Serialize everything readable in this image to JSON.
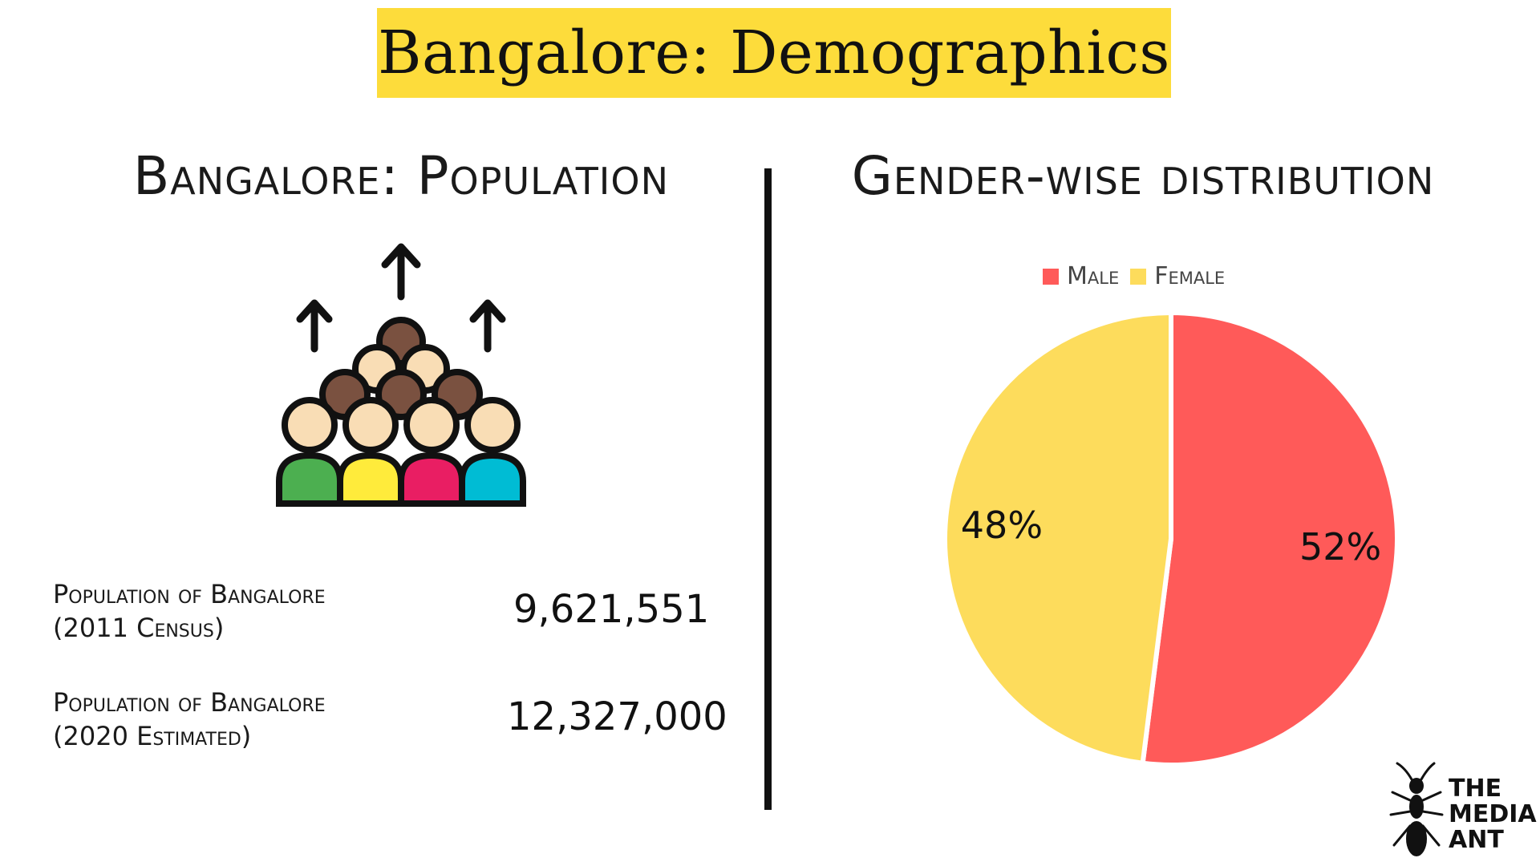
{
  "title": "Bangalore: Demographics",
  "left_panel": {
    "heading": "Bangalore: Population",
    "icon": "crowd-growth-icon",
    "stats": [
      {
        "label_line1": "Population of Bangalore",
        "label_line2": "(2011 Census)",
        "value": "9,621,551"
      },
      {
        "label_line1": "Population of Bangalore",
        "label_line2": "(2020 Estimated)",
        "value": "12,327,000"
      }
    ]
  },
  "right_panel": {
    "heading": "Gender-wise distribution"
  },
  "chart_data": {
    "type": "pie",
    "categories": [
      "Male",
      "Female"
    ],
    "values": [
      52,
      48
    ],
    "data_labels": [
      "52%",
      "48%"
    ],
    "colors": [
      "#FF5A59",
      "#FDDC5C"
    ],
    "legend_position": "top",
    "start_angle_deg": 0,
    "direction": "clockwise"
  },
  "logo": {
    "line1": "THE",
    "line2": "MEDIA",
    "line3": "ANT",
    "icon": "ant-icon"
  },
  "colors": {
    "banner": "#FDDC3B",
    "text": "#111111"
  }
}
